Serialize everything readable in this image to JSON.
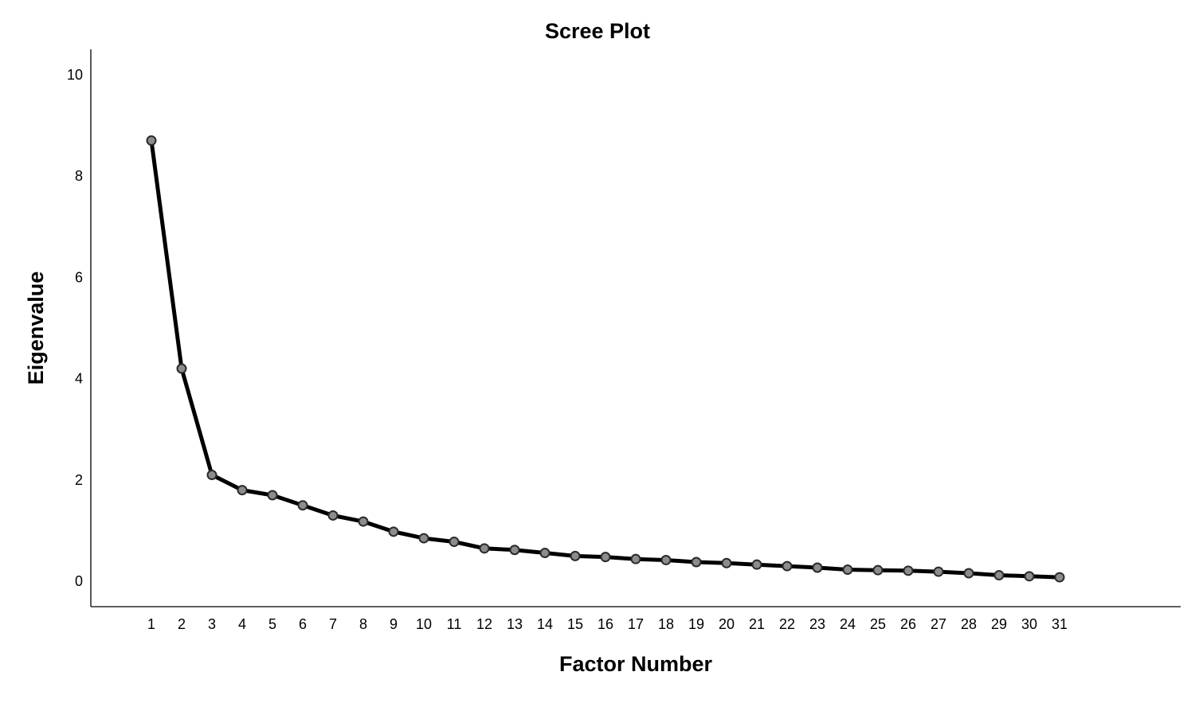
{
  "chart_data": {
    "type": "line",
    "title": "Scree Plot",
    "xlabel": "Factor Number",
    "ylabel": "Eigenvalue",
    "x": [
      1,
      2,
      3,
      4,
      5,
      6,
      7,
      8,
      9,
      10,
      11,
      12,
      13,
      14,
      15,
      16,
      17,
      18,
      19,
      20,
      21,
      22,
      23,
      24,
      25,
      26,
      27,
      28,
      29,
      30,
      31
    ],
    "x_tick_labels": [
      "1",
      "2",
      "3",
      "4",
      "5",
      "6",
      "7",
      "8",
      "9",
      "10",
      "11",
      "12",
      "13",
      "14",
      "15",
      "16",
      "17",
      "18",
      "19",
      "20",
      "21",
      "22",
      "23",
      "24",
      "25",
      "26",
      "27",
      "28",
      "29",
      "30",
      "31"
    ],
    "y_ticks": [
      0,
      2,
      4,
      6,
      8,
      10
    ],
    "y_tick_labels": [
      "0",
      "2",
      "4",
      "6",
      "8",
      "10"
    ],
    "ylim": [
      -0.5,
      10.5
    ],
    "xlim": [
      -1,
      35
    ],
    "grid": false,
    "series": [
      {
        "values": [
          8.7,
          4.2,
          2.1,
          1.8,
          1.7,
          1.5,
          1.3,
          1.18,
          0.98,
          0.85,
          0.78,
          0.65,
          0.62,
          0.56,
          0.5,
          0.48,
          0.44,
          0.42,
          0.38,
          0.36,
          0.33,
          0.3,
          0.27,
          0.23,
          0.22,
          0.21,
          0.19,
          0.16,
          0.12,
          0.1,
          0.08
        ],
        "line_color": "#000000",
        "marker_color": "#8c8c8c"
      }
    ]
  }
}
